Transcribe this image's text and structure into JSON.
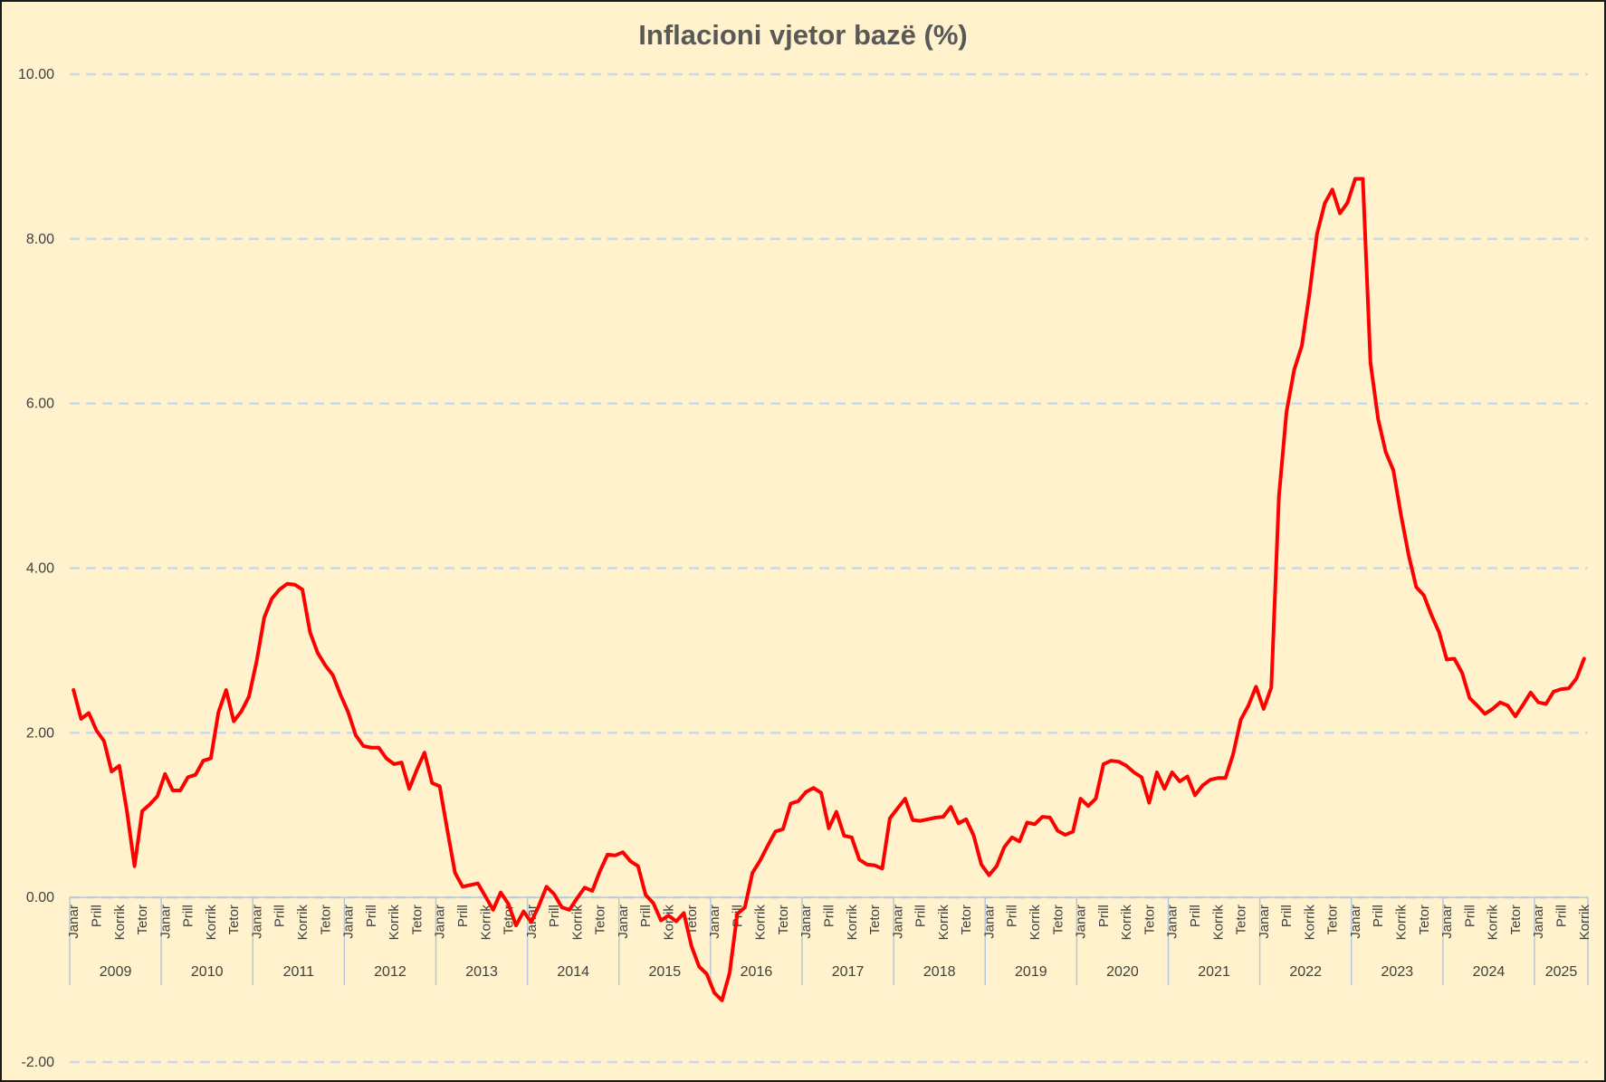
{
  "chart_data": {
    "type": "line",
    "title": "Inflacioni vjetor bazë (%)",
    "xlabel": "",
    "ylabel": "",
    "ylim": [
      -2,
      10
    ],
    "yticks": [
      10,
      8,
      6,
      4,
      2,
      0,
      -2
    ],
    "ytick_labels": [
      "10.00",
      "8.00",
      "6.00",
      "4.00",
      "2.00",
      "0.00",
      "-2.00"
    ],
    "grid": true,
    "grid_style": "dashed",
    "legend": "none",
    "line_color": "#ff0000",
    "background_color": "#fff2cc",
    "month_tick_labels": [
      "Janar",
      "Prill",
      "Korrik",
      "Tetor"
    ],
    "years": [
      "2009",
      "2010",
      "2011",
      "2012",
      "2013",
      "2014",
      "2015",
      "2016",
      "2017",
      "2018",
      "2019",
      "2020",
      "2021",
      "2022",
      "2023",
      "2024",
      "2025"
    ],
    "x_start": "2009-01",
    "x_end": "2025-09",
    "series": [
      {
        "values": [
          2.52,
          2.17,
          2.24,
          2.03,
          1.9,
          1.53,
          1.6,
          1.05,
          0.38,
          1.05,
          1.13,
          1.23,
          1.5,
          1.3,
          1.3,
          1.46,
          1.49,
          1.66,
          1.69,
          2.25,
          2.52,
          2.14,
          2.26,
          2.44,
          2.87,
          3.4,
          3.63,
          3.74,
          3.81,
          3.8,
          3.74,
          3.22,
          2.97,
          2.82,
          2.7,
          2.46,
          2.25,
          1.97,
          1.84,
          1.82,
          1.82,
          1.69,
          1.62,
          1.64,
          1.32,
          1.55,
          1.76,
          1.39,
          1.35,
          0.82,
          0.3,
          0.13,
          0.15,
          0.17,
          0.01,
          -0.15,
          0.06,
          -0.08,
          -0.34,
          -0.17,
          -0.3,
          -0.1,
          0.13,
          0.04,
          -0.12,
          -0.15,
          -0.01,
          0.12,
          0.08,
          0.32,
          0.52,
          0.51,
          0.55,
          0.44,
          0.38,
          0.03,
          -0.07,
          -0.28,
          -0.22,
          -0.29,
          -0.19,
          -0.59,
          -0.84,
          -0.93,
          -1.16,
          -1.25,
          -0.92,
          -0.2,
          -0.12,
          0.3,
          0.45,
          0.63,
          0.8,
          0.83,
          1.14,
          1.17,
          1.28,
          1.33,
          1.27,
          0.84,
          1.04,
          0.75,
          0.73,
          0.46,
          0.4,
          0.39,
          0.35,
          0.96,
          1.08,
          1.2,
          0.94,
          0.93,
          0.95,
          0.97,
          0.98,
          1.1,
          0.9,
          0.95,
          0.75,
          0.4,
          0.27,
          0.38,
          0.61,
          0.73,
          0.68,
          0.91,
          0.89,
          0.98,
          0.97,
          0.81,
          0.76,
          0.8,
          1.2,
          1.11,
          1.2,
          1.62,
          1.66,
          1.65,
          1.6,
          1.52,
          1.46,
          1.15,
          1.52,
          1.32,
          1.52,
          1.41,
          1.47,
          1.24,
          1.36,
          1.43,
          1.45,
          1.45,
          1.74,
          2.16,
          2.33,
          2.56,
          2.29,
          2.55,
          4.87,
          5.9,
          6.41,
          6.7,
          7.33,
          8.06,
          8.43,
          8.6,
          8.31,
          8.44,
          8.73,
          8.73,
          6.5,
          5.81,
          5.41,
          5.19,
          4.65,
          4.16,
          3.77,
          3.67,
          3.43,
          3.22,
          2.89,
          2.9,
          2.73,
          2.42,
          2.33,
          2.23,
          2.29,
          2.37,
          2.33,
          2.2,
          2.34,
          2.49,
          2.37,
          2.35,
          2.5,
          2.53,
          2.54,
          2.66,
          2.9
        ]
      }
    ]
  }
}
